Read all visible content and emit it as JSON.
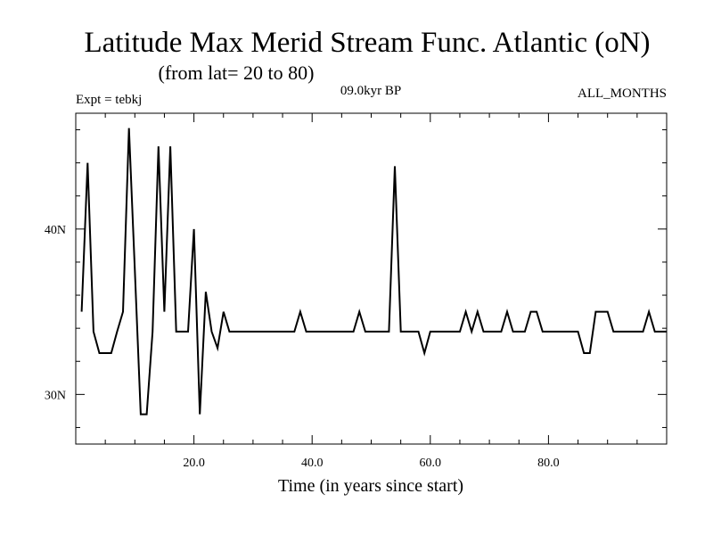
{
  "chart_data": {
    "type": "line",
    "title": "Latitude Max Merid Stream Func. Atlantic (oN)",
    "subtitle": "(from lat= 20 to 80)",
    "expt_label": "Expt = tebkj",
    "period_label": "09.0kyr BP",
    "months_label": "ALL_MONTHS",
    "xlabel": "Time (in years since start)",
    "ylabel": "",
    "xlim": [
      0,
      100
    ],
    "ylim": [
      27,
      47
    ],
    "x_ticks": [
      {
        "value": 20,
        "label": "20.0"
      },
      {
        "value": 40,
        "label": "40.0"
      },
      {
        "value": 60,
        "label": "60.0"
      },
      {
        "value": 80,
        "label": "80.0"
      }
    ],
    "y_ticks": [
      {
        "value": 30,
        "label": "30N"
      },
      {
        "value": 40,
        "label": "40N"
      }
    ],
    "grid": false,
    "series": [
      {
        "name": "Latitude Max",
        "color": "#000000",
        "x": [
          1,
          2,
          3,
          4,
          5,
          6,
          7,
          8,
          9,
          10,
          11,
          12,
          13,
          14,
          15,
          16,
          17,
          18,
          19,
          20,
          21,
          22,
          23,
          24,
          25,
          26,
          27,
          28,
          29,
          30,
          31,
          32,
          33,
          34,
          35,
          36,
          37,
          38,
          39,
          40,
          41,
          42,
          43,
          44,
          45,
          46,
          47,
          48,
          49,
          50,
          51,
          52,
          53,
          54,
          55,
          56,
          57,
          58,
          59,
          60,
          61,
          62,
          63,
          64,
          65,
          66,
          67,
          68,
          69,
          70,
          71,
          72,
          73,
          74,
          75,
          76,
          77,
          78,
          79,
          80,
          81,
          82,
          83,
          84,
          85,
          86,
          87,
          88,
          89,
          90,
          91,
          92,
          93,
          94,
          95,
          96,
          97,
          98,
          99,
          100
        ],
        "values": [
          35.0,
          44.0,
          33.8,
          32.5,
          32.5,
          32.5,
          33.8,
          35.0,
          46.1,
          37.5,
          28.8,
          28.8,
          33.8,
          45.0,
          35.0,
          45.0,
          33.8,
          33.8,
          33.8,
          40.0,
          28.8,
          36.2,
          33.8,
          32.8,
          35.0,
          33.8,
          33.8,
          33.8,
          33.8,
          33.8,
          33.8,
          33.8,
          33.8,
          33.8,
          33.8,
          33.8,
          33.8,
          35.0,
          33.8,
          33.8,
          33.8,
          33.8,
          33.8,
          33.8,
          33.8,
          33.8,
          33.8,
          35.0,
          33.8,
          33.8,
          33.8,
          33.8,
          33.8,
          43.8,
          33.8,
          33.8,
          33.8,
          33.8,
          32.5,
          33.8,
          33.8,
          33.8,
          33.8,
          33.8,
          33.8,
          35.0,
          33.8,
          35.0,
          33.8,
          33.8,
          33.8,
          33.8,
          35.0,
          33.8,
          33.8,
          33.8,
          35.0,
          35.0,
          33.8,
          33.8,
          33.8,
          33.8,
          33.8,
          33.8,
          33.8,
          32.5,
          32.5,
          35.0,
          35.0,
          35.0,
          33.8,
          33.8,
          33.8,
          33.8,
          33.8,
          33.8,
          35.0,
          33.8,
          33.8,
          33.8
        ]
      }
    ]
  }
}
